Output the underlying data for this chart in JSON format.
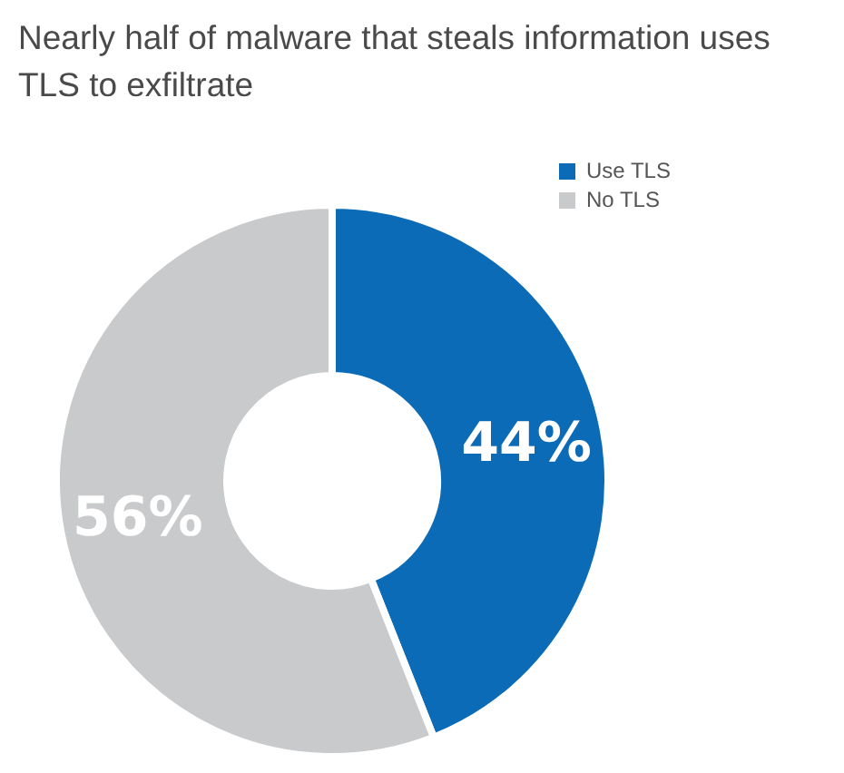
{
  "chart_data": {
    "type": "donut",
    "title": "Nearly half of malware that steals information uses TLS to exfiltrate",
    "categories": [
      "Use TLS",
      "No TLS"
    ],
    "values": [
      44,
      56
    ],
    "colors": [
      "#0b6bb6",
      "#c9cacc"
    ],
    "value_labels": [
      "44%",
      "56%"
    ],
    "legend": "top right"
  }
}
